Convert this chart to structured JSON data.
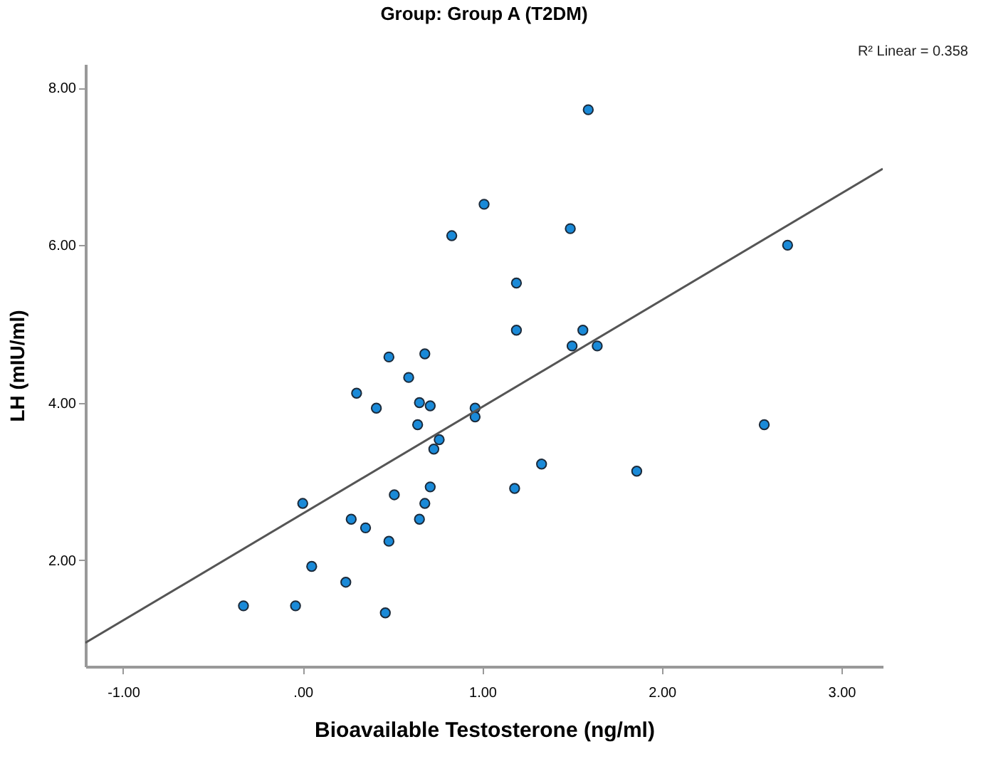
{
  "chart_data": {
    "type": "scatter",
    "title": "Group: Group A (T2DM)",
    "xlabel": "Bioavailable Testosterone (ng/ml)",
    "ylabel": "LH (mIU/ml)",
    "annotations": [
      "R² Linear = 0.358"
    ],
    "xlim": [
      -1.21,
      3.23
    ],
    "ylim": [
      0.65,
      8.3
    ],
    "xticks": [
      {
        "value": -1,
        "label": "-1.00"
      },
      {
        "value": 0,
        "label": ".00"
      },
      {
        "value": 1,
        "label": "1.00"
      },
      {
        "value": 2,
        "label": "2.00"
      },
      {
        "value": 3,
        "label": "3.00"
      }
    ],
    "yticks": [
      {
        "value": 2,
        "label": "2.00"
      },
      {
        "value": 4,
        "label": "4.00"
      },
      {
        "value": 6,
        "label": "6.00"
      },
      {
        "value": 8,
        "label": "8.00"
      }
    ],
    "grid": false,
    "series": [
      {
        "marker": "circle",
        "color": "#1a8ad8",
        "x": [
          -0.33,
          -0.04,
          0.0,
          0.05,
          0.24,
          0.27,
          0.35,
          0.46,
          0.48,
          0.51,
          0.3,
          0.41,
          0.48,
          0.59,
          0.65,
          0.64,
          0.68,
          0.71,
          0.73,
          0.76,
          0.71,
          0.68,
          0.65,
          0.96,
          0.96,
          1.18,
          1.33,
          1.86,
          2.57,
          1.59,
          1.01,
          0.83,
          1.49,
          1.19,
          1.19,
          1.56,
          1.5,
          1.64,
          2.7
        ],
        "values": [
          1.42,
          1.42,
          2.72,
          1.92,
          1.72,
          2.52,
          2.41,
          1.33,
          2.24,
          2.83,
          4.12,
          3.93,
          4.58,
          4.32,
          4.0,
          3.72,
          4.62,
          3.96,
          3.41,
          3.53,
          2.93,
          2.72,
          2.52,
          3.93,
          3.82,
          2.91,
          3.22,
          3.13,
          3.72,
          7.72,
          6.52,
          6.12,
          6.21,
          5.52,
          4.92,
          4.92,
          4.72,
          4.72,
          6.0
        ]
      },
      {
        "type": "line",
        "color": "#555555",
        "line_style": "solid",
        "x": [
          -1.21,
          3.23
        ],
        "values": [
          0.95,
          6.97
        ]
      }
    ]
  }
}
